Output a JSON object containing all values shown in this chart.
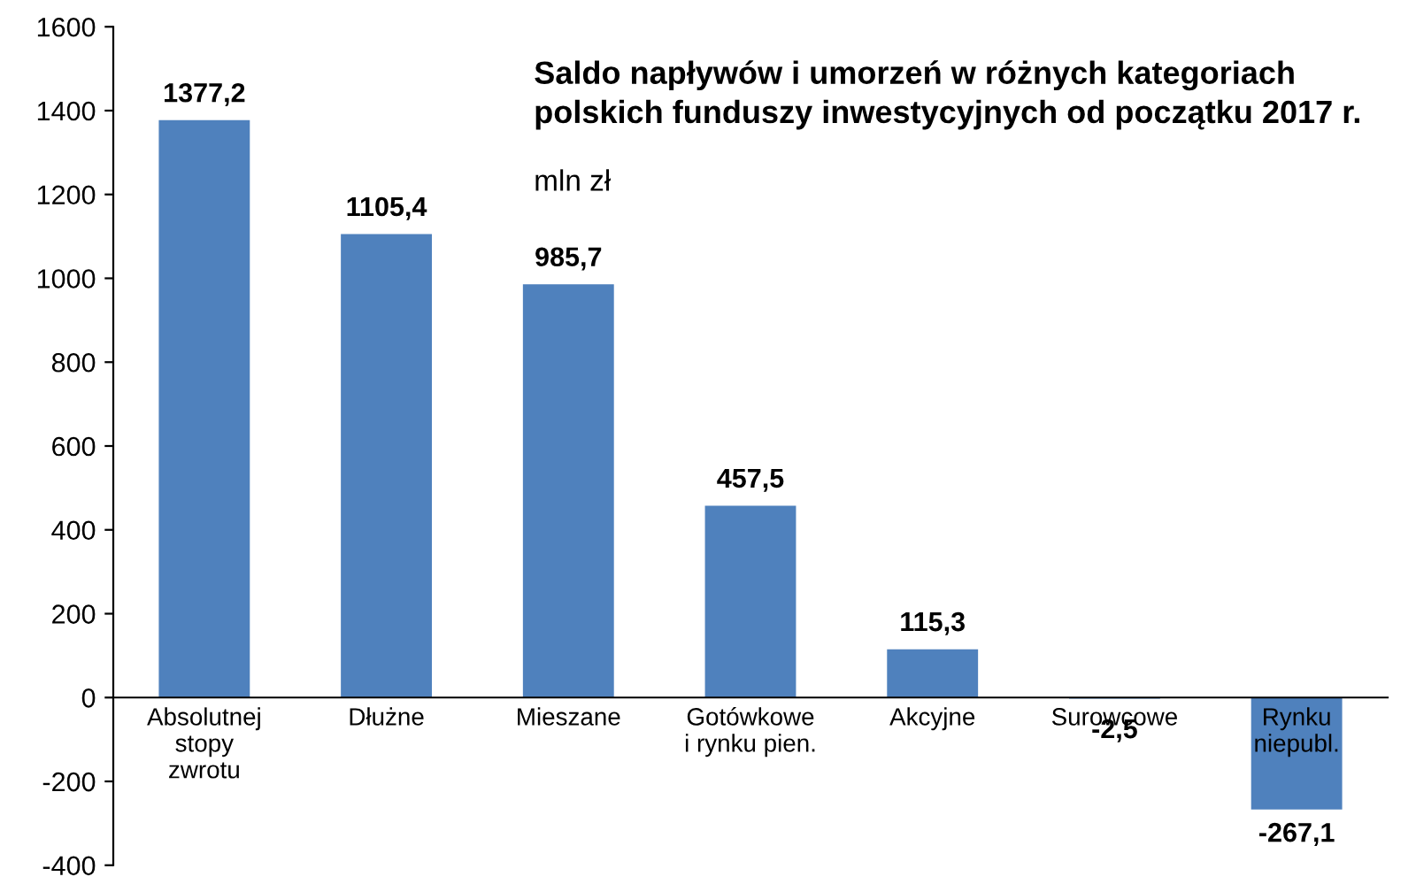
{
  "chart_data": {
    "type": "bar",
    "title": "Saldo napływów i umorzeń w różnych kategoriach\npolskich funduszy inwestycyjnych od początku 2017 r.",
    "subtitle": "mln zł",
    "categories": [
      "Absolutnej\nstopy\nzwrotu",
      "Dłużne",
      "Mieszane",
      "Gotówkowe\ni rynku pien.",
      "Akcyjne",
      "Surowcowe",
      "Rynku\nniepubl."
    ],
    "values": [
      1377.2,
      1105.4,
      985.7,
      457.5,
      115.3,
      -2.5,
      -267.1
    ],
    "value_labels": [
      "1377,2",
      "1105,4",
      "985,7",
      "457,5",
      "115,3",
      "-2,5",
      "-267,1"
    ],
    "color": "#4f81bd",
    "ylim": [
      -400,
      1600
    ],
    "yticks": [
      -400,
      -200,
      0,
      200,
      400,
      600,
      800,
      1000,
      1200,
      1400,
      1600
    ],
    "grid": false,
    "legend": false
  }
}
